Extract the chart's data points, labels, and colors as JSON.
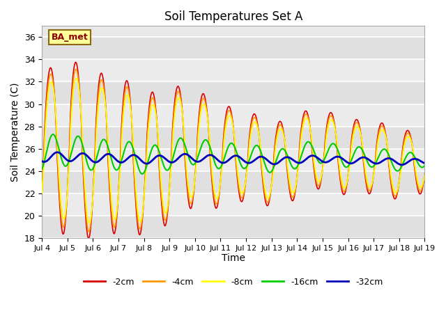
{
  "title": "Soil Temperatures Set A",
  "xlabel": "Time",
  "ylabel": "Soil Temperature (C)",
  "ylim": [
    18,
    37
  ],
  "yticks": [
    18,
    20,
    22,
    24,
    26,
    28,
    30,
    32,
    34,
    36
  ],
  "xlim_days": [
    0,
    15
  ],
  "annotation": "BA_met",
  "series_colors": {
    "-2cm": "#dd0000",
    "-4cm": "#ff9900",
    "-8cm": "#ffff00",
    "-16cm": "#00cc00",
    "-32cm": "#0000bb"
  },
  "series_linewidths": {
    "-2cm": 1.2,
    "-4cm": 1.2,
    "-8cm": 1.2,
    "-16cm": 1.5,
    "-32cm": 2.0
  },
  "legend_labels": [
    "-2cm",
    "-4cm",
    "-8cm",
    "-16cm",
    "-32cm"
  ],
  "xtick_labels": [
    "Jul 4",
    "Jul 5",
    "Jul 6",
    "Jul 7",
    "Jul 8",
    "Jul 9",
    "Jul 10",
    "Jul 11",
    "Jul 12",
    "Jul 13",
    "Jul 14",
    "Jul 15",
    "Jul 16",
    "Jul 17",
    "Jul 18",
    "Jul 19"
  ],
  "band_colors": [
    "#e0e0e0",
    "#ebebeb"
  ],
  "plot_bg_color": "#e8e8e8"
}
